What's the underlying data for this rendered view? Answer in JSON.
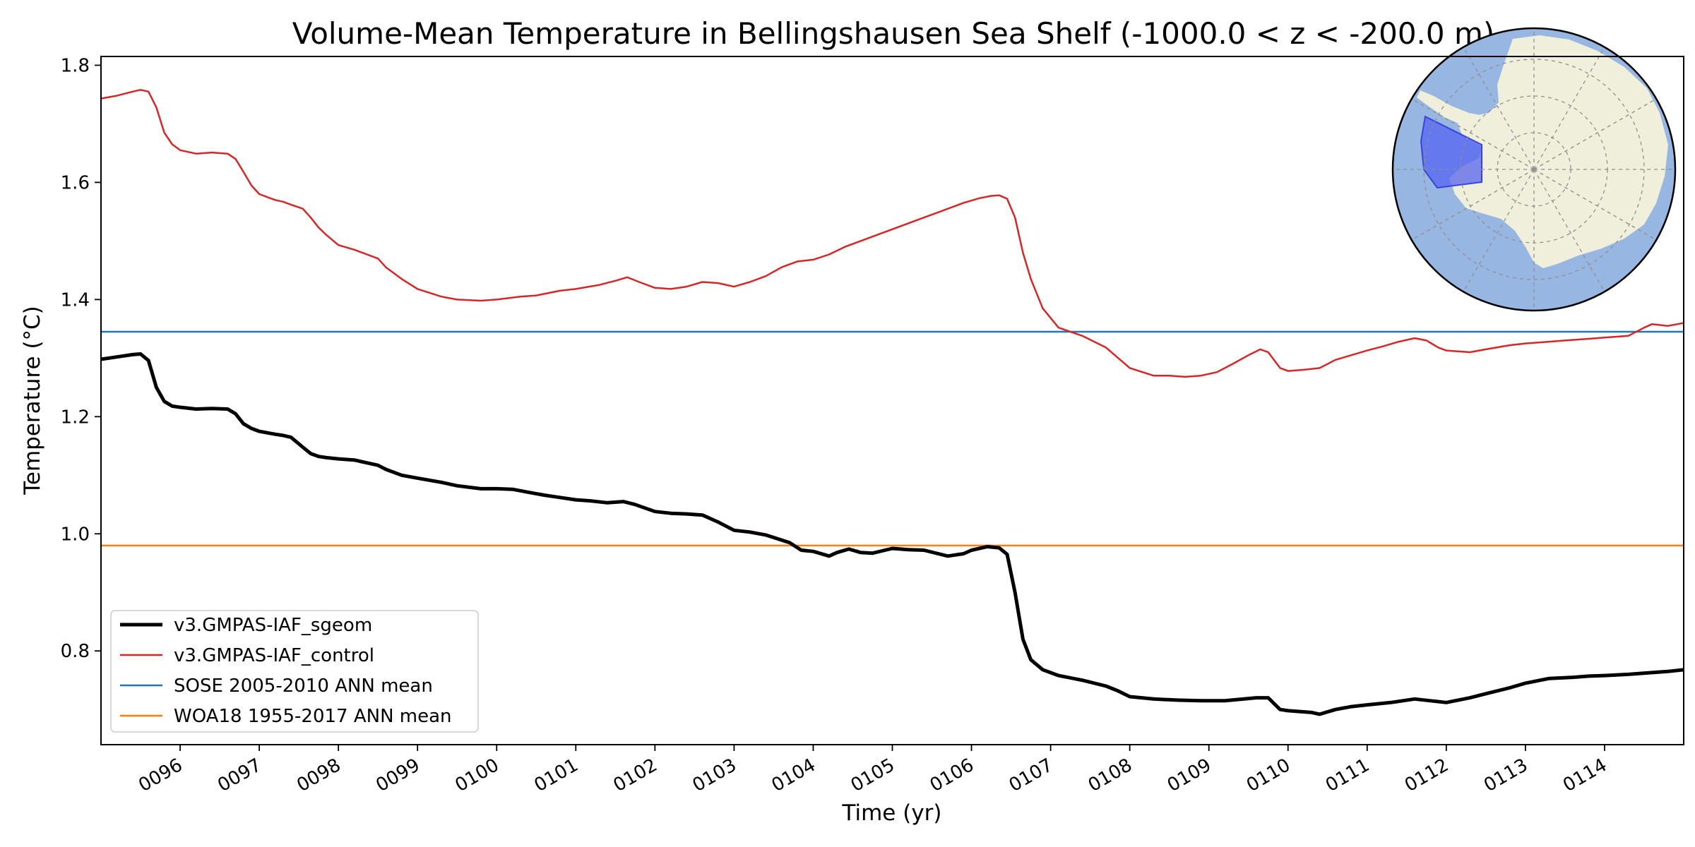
{
  "chart_data": {
    "type": "line",
    "title": "Volume-Mean Temperature in Bellingshausen Sea Shelf (-1000.0 < z < -200.0 m)",
    "xlabel": "Time (yr)",
    "ylabel": "Temperature ($^\\circ$C)",
    "ylabel_text": "Temperature (°C)",
    "xlim": [
      95.0,
      115.0
    ],
    "ylim": [
      0.64,
      1.815
    ],
    "xticks": [
      96,
      97,
      98,
      99,
      100,
      101,
      102,
      103,
      104,
      105,
      106,
      107,
      108,
      109,
      110,
      111,
      112,
      113,
      114
    ],
    "xtick_labels": [
      "0096",
      "0097",
      "0098",
      "0099",
      "0100",
      "0101",
      "0102",
      "0103",
      "0104",
      "0105",
      "0106",
      "0107",
      "0108",
      "0109",
      "0110",
      "0111",
      "0112",
      "0113",
      "0114"
    ],
    "yticks": [
      0.8,
      1.0,
      1.2,
      1.4,
      1.6,
      1.8
    ],
    "ytick_labels": [
      "0.8",
      "1.0",
      "1.2",
      "1.4",
      "1.6",
      "1.8"
    ],
    "grid": false,
    "legend_position": "lower-left",
    "series": [
      {
        "name": "v3.GMPAS-IAF_sgeom",
        "color": "#000000",
        "width": 5,
        "style": "line",
        "x": [
          95.0,
          95.2,
          95.4,
          95.5,
          95.6,
          95.7,
          95.8,
          95.9,
          96.0,
          96.2,
          96.4,
          96.6,
          96.7,
          96.8,
          96.9,
          97.0,
          97.2,
          97.3,
          97.4,
          97.55,
          97.65,
          97.75,
          97.85,
          98.0,
          98.2,
          98.5,
          98.6,
          98.8,
          99.0,
          99.3,
          99.5,
          99.8,
          100.0,
          100.2,
          100.4,
          100.6,
          100.8,
          101.0,
          101.2,
          101.4,
          101.6,
          101.75,
          102.0,
          102.2,
          102.4,
          102.6,
          102.8,
          103.0,
          103.2,
          103.4,
          103.7,
          103.85,
          104.0,
          104.2,
          104.3,
          104.45,
          104.6,
          104.75,
          105.0,
          105.2,
          105.4,
          105.7,
          105.9,
          106.0,
          106.2,
          106.35,
          106.45,
          106.55,
          106.65,
          106.75,
          106.9,
          107.1,
          107.4,
          107.7,
          107.85,
          108.0,
          108.3,
          108.6,
          108.9,
          109.2,
          109.6,
          109.75,
          109.9,
          110.0,
          110.3,
          110.4,
          110.6,
          110.8,
          111.0,
          111.3,
          111.6,
          111.8,
          112.0,
          112.3,
          112.5,
          112.8,
          113.0,
          113.3,
          113.6,
          113.8,
          114.0,
          114.3,
          114.6,
          114.8,
          115.0
        ],
        "y": [
          1.298,
          1.302,
          1.306,
          1.307,
          1.296,
          1.25,
          1.226,
          1.218,
          1.216,
          1.213,
          1.214,
          1.213,
          1.205,
          1.188,
          1.18,
          1.175,
          1.17,
          1.168,
          1.165,
          1.148,
          1.137,
          1.132,
          1.13,
          1.128,
          1.126,
          1.117,
          1.11,
          1.1,
          1.095,
          1.088,
          1.082,
          1.077,
          1.077,
          1.076,
          1.071,
          1.066,
          1.062,
          1.058,
          1.056,
          1.053,
          1.055,
          1.05,
          1.038,
          1.035,
          1.034,
          1.032,
          1.02,
          1.006,
          1.003,
          0.998,
          0.985,
          0.972,
          0.97,
          0.962,
          0.968,
          0.974,
          0.968,
          0.967,
          0.975,
          0.973,
          0.972,
          0.962,
          0.966,
          0.972,
          0.978,
          0.976,
          0.965,
          0.9,
          0.82,
          0.785,
          0.768,
          0.758,
          0.75,
          0.74,
          0.732,
          0.722,
          0.718,
          0.716,
          0.715,
          0.715,
          0.72,
          0.72,
          0.7,
          0.698,
          0.695,
          0.692,
          0.7,
          0.705,
          0.708,
          0.712,
          0.718,
          0.715,
          0.712,
          0.72,
          0.727,
          0.737,
          0.745,
          0.753,
          0.755,
          0.757,
          0.758,
          0.76,
          0.763,
          0.765,
          0.768
        ]
      },
      {
        "name": "v3.GMPAS-IAF_control",
        "color": "#d62728",
        "width": 2.5,
        "style": "line",
        "x": [
          95.0,
          95.2,
          95.4,
          95.5,
          95.6,
          95.7,
          95.8,
          95.9,
          96.0,
          96.2,
          96.4,
          96.6,
          96.7,
          96.8,
          96.9,
          97.0,
          97.2,
          97.3,
          97.4,
          97.55,
          97.65,
          97.75,
          97.85,
          98.0,
          98.2,
          98.5,
          98.6,
          98.8,
          99.0,
          99.3,
          99.5,
          99.8,
          100.0,
          100.3,
          100.5,
          100.8,
          101.0,
          101.3,
          101.5,
          101.65,
          101.8,
          102.0,
          102.2,
          102.4,
          102.6,
          102.8,
          103.0,
          103.2,
          103.4,
          103.6,
          103.8,
          104.0,
          104.2,
          104.4,
          104.6,
          104.8,
          105.0,
          105.3,
          105.6,
          105.9,
          106.1,
          106.25,
          106.35,
          106.45,
          106.55,
          106.65,
          106.75,
          106.9,
          107.1,
          107.4,
          107.7,
          108.0,
          108.3,
          108.5,
          108.7,
          108.9,
          109.1,
          109.3,
          109.5,
          109.65,
          109.75,
          109.9,
          110.0,
          110.2,
          110.4,
          110.6,
          110.8,
          111.0,
          111.2,
          111.4,
          111.6,
          111.75,
          111.9,
          112.0,
          112.3,
          112.5,
          112.8,
          113.0,
          113.3,
          113.5,
          113.8,
          114.0,
          114.3,
          114.5,
          114.6,
          114.8,
          115.0
        ],
        "y": [
          1.743,
          1.748,
          1.755,
          1.758,
          1.755,
          1.728,
          1.685,
          1.665,
          1.655,
          1.649,
          1.651,
          1.649,
          1.64,
          1.618,
          1.595,
          1.58,
          1.57,
          1.567,
          1.562,
          1.555,
          1.54,
          1.523,
          1.51,
          1.493,
          1.485,
          1.47,
          1.455,
          1.435,
          1.418,
          1.405,
          1.4,
          1.398,
          1.4,
          1.405,
          1.407,
          1.415,
          1.418,
          1.425,
          1.432,
          1.438,
          1.43,
          1.42,
          1.418,
          1.422,
          1.43,
          1.428,
          1.422,
          1.43,
          1.44,
          1.455,
          1.465,
          1.468,
          1.477,
          1.49,
          1.5,
          1.51,
          1.52,
          1.535,
          1.55,
          1.565,
          1.573,
          1.577,
          1.578,
          1.572,
          1.54,
          1.48,
          1.435,
          1.385,
          1.352,
          1.338,
          1.318,
          1.283,
          1.27,
          1.27,
          1.268,
          1.27,
          1.276,
          1.29,
          1.305,
          1.315,
          1.31,
          1.283,
          1.278,
          1.28,
          1.283,
          1.297,
          1.305,
          1.313,
          1.32,
          1.328,
          1.334,
          1.33,
          1.318,
          1.313,
          1.31,
          1.315,
          1.322,
          1.325,
          1.328,
          1.33,
          1.333,
          1.335,
          1.338,
          1.352,
          1.358,
          1.355,
          1.36
        ]
      },
      {
        "name": "SOSE 2005-2010 ANN mean",
        "color": "#1f77b4",
        "width": 2.5,
        "style": "hline",
        "value": 1.345
      },
      {
        "name": "WOA18 1955-2017 ANN mean",
        "color": "#ff7f0e",
        "width": 2.5,
        "style": "hline",
        "value": 0.98
      }
    ],
    "inset_map": {
      "description": "Antarctic polar stereographic inset",
      "ocean_color": "#97b6e1",
      "land_color": "#efefdb",
      "region_color": "#5563f0"
    }
  }
}
